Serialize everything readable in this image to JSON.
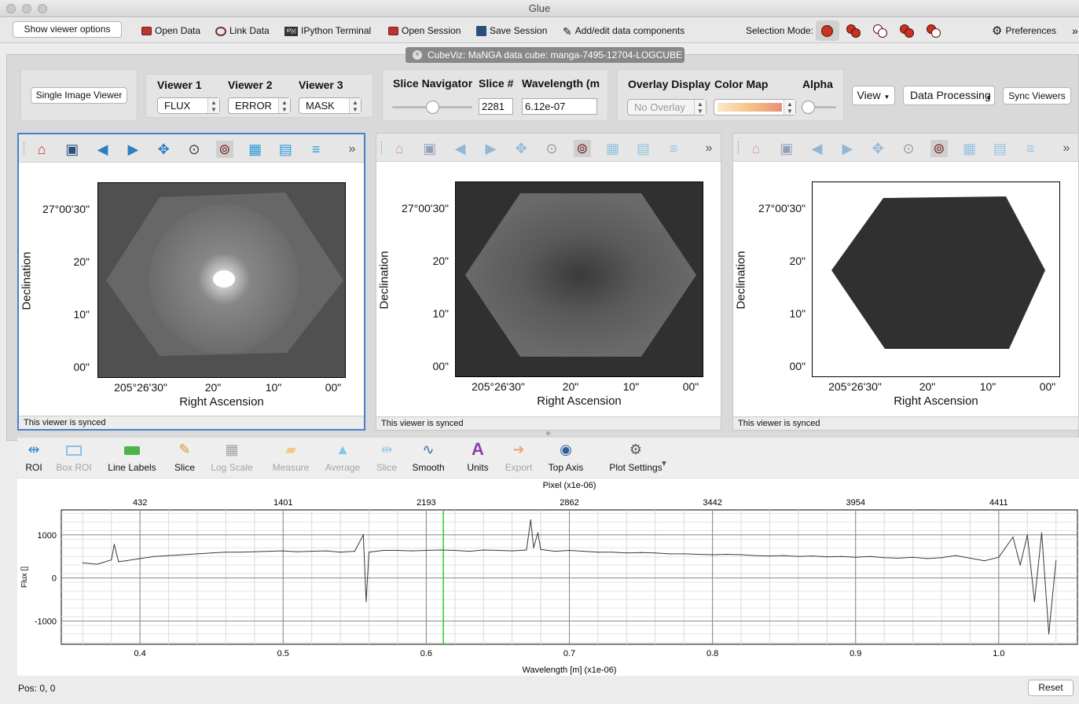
{
  "window": {
    "title": "Glue"
  },
  "toolbar": {
    "show_viewer_options": "Show viewer options",
    "open_data": "Open Data",
    "link_data": "Link Data",
    "ipython_badge": "IP[y]",
    "ipython_terminal": "IPython Terminal",
    "open_session": "Open Session",
    "save_session": "Save Session",
    "add_edit_components": "Add/edit data components",
    "selection_mode": "Selection Mode:",
    "preferences": "Preferences",
    "more": "»"
  },
  "tab": {
    "title": "CubeViz: MaNGA data cube: manga-7495-12704-LOGCUBE"
  },
  "controls": {
    "single_image_viewer": "Single Image Viewer",
    "viewer1_label": "Viewer 1",
    "viewer2_label": "Viewer 2",
    "viewer3_label": "Viewer 3",
    "viewer1_value": "FLUX",
    "viewer2_value": "ERROR",
    "viewer3_value": "MASK",
    "slice_navigator": "Slice Navigator",
    "slice_num_label": "Slice #",
    "slice_value": "2281",
    "slider_fraction": 0.5,
    "wavelength_label": "Wavelength (m",
    "wavelength_value": "6.12e-07",
    "overlay_display": "Overlay Display",
    "overlay_value": "No Overlay",
    "color_map": "Color Map",
    "alpha": "Alpha",
    "alpha_fraction": 0.0,
    "view": "View",
    "data_processing": "Data Processing",
    "sync_viewers": "Sync Viewers"
  },
  "viewers": [
    {
      "status": "This viewer is synced",
      "ylabel": "Declination",
      "xlabel": "Right Ascension",
      "yticks": [
        "27°00'30\"",
        "20\"",
        "10\"",
        "00\""
      ],
      "xticks": [
        "205°26'30\"",
        "20\"",
        "10\"",
        "00\""
      ]
    },
    {
      "status": "This viewer is synced",
      "ylabel": "Declination",
      "xlabel": "Right Ascension",
      "yticks": [
        "27°00'30\"",
        "20\"",
        "10\"",
        "00\""
      ],
      "xticks": [
        "205°26'30\"",
        "20\"",
        "10\"",
        "00\""
      ]
    },
    {
      "status": "This viewer is synced",
      "ylabel": "Declination",
      "xlabel": "Right Ascension",
      "yticks": [
        "27°00'30\"",
        "20\"",
        "10\"",
        "00\""
      ],
      "xticks": [
        "205°26'30\"",
        "20\"",
        "10\"",
        "00\""
      ]
    }
  ],
  "spectrum_toolbar": {
    "roi": "ROI",
    "box_roi": "Box ROI",
    "line_labels": "Line Labels",
    "slice": "Slice",
    "log_scale": "Log Scale",
    "measure": "Measure",
    "average": "Average",
    "slice2": "Slice",
    "smooth": "Smooth",
    "units": "Units",
    "export": "Export",
    "top_axis": "Top Axis",
    "plot_settings": "Plot Settings"
  },
  "chart_data": {
    "type": "line",
    "top_label": "Pixel (x1e-06)",
    "xlabel": "Wavelength [m] (x1e-06)",
    "ylabel": "Flux []",
    "xlim": [
      0.345,
      1.055
    ],
    "ylim": [
      -1540,
      1580
    ],
    "xticks": [
      "0.4",
      "0.5",
      "0.6",
      "0.7",
      "0.8",
      "0.9",
      "1.0"
    ],
    "yticks": [
      "1000",
      "0",
      "-1000"
    ],
    "top_ticks": [
      {
        "x": 0.4,
        "label": "432"
      },
      {
        "x": 0.5,
        "label": "1401"
      },
      {
        "x": 0.6,
        "label": "2193"
      },
      {
        "x": 0.7,
        "label": "2862"
      },
      {
        "x": 0.8,
        "label": "3442"
      },
      {
        "x": 0.9,
        "label": "3954"
      },
      {
        "x": 1.0,
        "label": "4411"
      }
    ],
    "slice_marker_x": 0.612,
    "series": [
      {
        "x": [
          0.36,
          0.37,
          0.38,
          0.382,
          0.385,
          0.39,
          0.4,
          0.41,
          0.42,
          0.43,
          0.44,
          0.45,
          0.46,
          0.47,
          0.48,
          0.49,
          0.5,
          0.51,
          0.52,
          0.53,
          0.54,
          0.55,
          0.556,
          0.558,
          0.56,
          0.57,
          0.58,
          0.59,
          0.6,
          0.61,
          0.62,
          0.63,
          0.64,
          0.65,
          0.66,
          0.67,
          0.673,
          0.675,
          0.678,
          0.68,
          0.69,
          0.7,
          0.71,
          0.72,
          0.73,
          0.74,
          0.75,
          0.76,
          0.77,
          0.78,
          0.79,
          0.8,
          0.81,
          0.82,
          0.83,
          0.84,
          0.85,
          0.86,
          0.87,
          0.88,
          0.89,
          0.9,
          0.91,
          0.92,
          0.93,
          0.94,
          0.95,
          0.96,
          0.97,
          0.98,
          0.99,
          1.0,
          1.01,
          1.015,
          1.02,
          1.025,
          1.03,
          1.035,
          1.04
        ],
        "y": [
          350,
          320,
          420,
          780,
          380,
          400,
          450,
          500,
          520,
          540,
          560,
          580,
          600,
          600,
          610,
          620,
          630,
          610,
          620,
          630,
          600,
          620,
          1000,
          -550,
          600,
          640,
          640,
          630,
          640,
          650,
          640,
          620,
          650,
          640,
          630,
          650,
          1350,
          700,
          1050,
          660,
          620,
          640,
          620,
          600,
          600,
          580,
          590,
          580,
          560,
          560,
          550,
          540,
          550,
          540,
          520,
          510,
          520,
          500,
          510,
          490,
          500,
          480,
          500,
          470,
          460,
          480,
          450,
          470,
          520,
          460,
          400,
          480,
          950,
          300,
          1000,
          -550,
          1050,
          -1300,
          400
        ]
      }
    ]
  },
  "bottom": {
    "pos": "Pos: 0, 0",
    "reset": "Reset"
  }
}
